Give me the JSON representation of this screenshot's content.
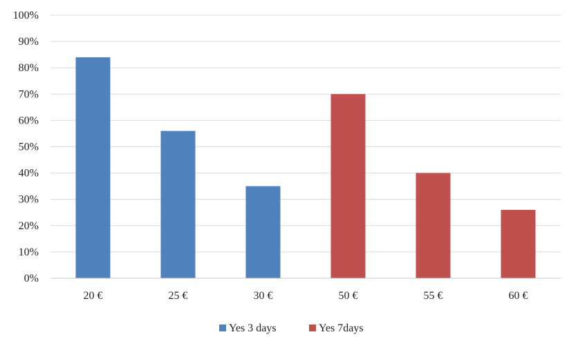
{
  "chart_data": {
    "type": "bar",
    "categories": [
      "20 €",
      "25 €",
      "30 €",
      "50 €",
      "55 €",
      "60 €"
    ],
    "series": [
      {
        "name": "Yes 3 days",
        "color": "#4f81bd",
        "values": [
          0.84,
          0.56,
          0.35,
          null,
          null,
          null
        ]
      },
      {
        "name": "Yes 7days",
        "color": "#c0504d",
        "values": [
          null,
          null,
          null,
          0.7,
          0.4,
          0.26
        ]
      }
    ],
    "yticks": [
      "0%",
      "10%",
      "20%",
      "30%",
      "40%",
      "50%",
      "60%",
      "70%",
      "80%",
      "90%",
      "100%"
    ],
    "ylim": [
      0,
      1
    ],
    "grid": true,
    "legend_position": "bottom",
    "title": "",
    "xlabel": "",
    "ylabel": ""
  }
}
